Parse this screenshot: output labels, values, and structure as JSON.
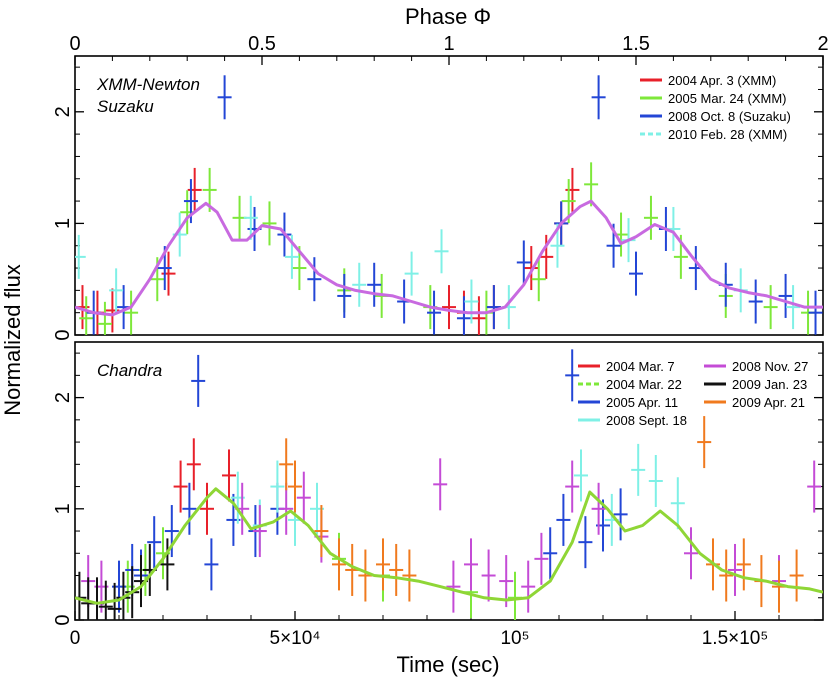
{
  "figure": {
    "top_axis_label": "Phase Φ",
    "x_axis_label": "Time (sec)",
    "y_axis_label": "Normalized flux"
  },
  "chart_data": [
    {
      "type": "line",
      "panel": "top",
      "title": "XMM-Newton Suzaku",
      "title_lines": [
        "XMM-Newton",
        "Suzaku"
      ],
      "phase_ticks": [
        "0",
        "0.5",
        "1",
        "1.5",
        "2"
      ],
      "phase_range": [
        0,
        2
      ],
      "ylim": [
        0,
        2.5
      ],
      "y_ticks": [
        "0",
        "1",
        "2"
      ],
      "legend": [
        {
          "label": "2004 Apr. 3 (XMM)",
          "color": "#e8202a",
          "style": "solid"
        },
        {
          "label": "2005 Mar. 24 (XMM)",
          "color": "#7ee83a",
          "style": "solid"
        },
        {
          "label": "2008 Oct. 8 (Suzaku)",
          "color": "#2346d6",
          "style": "solid"
        },
        {
          "label": "2010 Feb. 28 (XMM)",
          "color": "#7ff0e6",
          "style": "dashed"
        }
      ],
      "model_color": "#c86ae0",
      "model_curve": {
        "x": [
          0,
          0.05,
          0.1,
          0.15,
          0.2,
          0.25,
          0.3,
          0.35,
          0.38,
          0.42,
          0.46,
          0.5,
          0.55,
          0.6,
          0.65,
          0.7,
          0.75,
          0.8,
          0.85,
          0.9,
          0.95,
          1.0,
          1.05,
          1.1,
          1.15,
          1.2,
          1.25,
          1.3,
          1.35,
          1.38,
          1.42,
          1.46,
          1.5,
          1.55,
          1.6,
          1.65,
          1.7,
          1.75,
          1.8,
          1.85,
          1.9,
          1.95,
          2.0
        ],
        "y": [
          0.25,
          0.2,
          0.18,
          0.25,
          0.5,
          0.8,
          1.05,
          1.18,
          1.1,
          0.85,
          0.85,
          0.98,
          0.95,
          0.75,
          0.55,
          0.45,
          0.4,
          0.37,
          0.35,
          0.3,
          0.25,
          0.22,
          0.2,
          0.2,
          0.25,
          0.45,
          0.75,
          1.0,
          1.15,
          1.2,
          1.05,
          0.82,
          0.88,
          0.99,
          0.92,
          0.7,
          0.5,
          0.42,
          0.38,
          0.35,
          0.3,
          0.25,
          0.25
        ]
      },
      "series": [
        {
          "name": "2004 Apr. 3 (XMM)",
          "color": "#e8202a",
          "x": [
            0.02,
            0.06,
            0.1,
            0.25,
            0.32,
            1.0,
            1.04,
            1.08,
            1.12,
            1.22,
            1.26,
            1.3,
            1.33
          ],
          "y": [
            0.25,
            0.2,
            0.22,
            0.55,
            1.3,
            0.25,
            0.2,
            0.15,
            0.25,
            0.6,
            0.7,
            1.0,
            1.3
          ]
        },
        {
          "name": "2005 Mar. 24 (XMM)",
          "color": "#7ee83a",
          "x": [
            0.03,
            0.08,
            0.15,
            0.22,
            0.3,
            0.36,
            0.44,
            0.52,
            0.6,
            0.72,
            0.82,
            0.95,
            1.1,
            1.24,
            1.32,
            1.38,
            1.46,
            1.54,
            1.62,
            1.74,
            1.86,
            1.96
          ],
          "y": [
            0.15,
            0.1,
            0.2,
            0.5,
            1.1,
            1.3,
            1.05,
            1.0,
            0.6,
            0.4,
            0.35,
            0.25,
            0.2,
            0.5,
            1.2,
            1.35,
            0.9,
            1.05,
            0.7,
            0.35,
            0.25,
            0.2
          ]
        },
        {
          "name": "2008 Oct. 8 (Suzaku)",
          "color": "#2346d6",
          "x": [
            0.05,
            0.13,
            0.24,
            0.31,
            0.4,
            0.48,
            0.56,
            0.64,
            0.72,
            0.8,
            0.88,
            0.96,
            1.04,
            1.12,
            1.2,
            1.3,
            1.4,
            1.44,
            1.5,
            1.58,
            1.66,
            1.74,
            1.82,
            1.9,
            1.98
          ],
          "y": [
            0.2,
            0.25,
            0.6,
            1.2,
            2.13,
            0.95,
            0.9,
            0.5,
            0.35,
            0.45,
            0.3,
            0.2,
            0.15,
            0.25,
            0.65,
            1.0,
            2.13,
            0.8,
            0.55,
            0.95,
            0.6,
            0.45,
            0.3,
            0.35,
            0.2
          ]
        },
        {
          "name": "2010 Feb. 28 (XMM)",
          "color": "#7ff0e6",
          "x": [
            0.01,
            0.11,
            0.28,
            0.47,
            0.58,
            0.76,
            0.9,
            0.98,
            1.06,
            1.16,
            1.29,
            1.48,
            1.6,
            1.78,
            1.92
          ],
          "y": [
            0.7,
            0.4,
            0.9,
            1.05,
            0.7,
            0.45,
            0.55,
            0.75,
            0.3,
            0.25,
            0.8,
            0.85,
            0.95,
            0.4,
            0.25
          ]
        }
      ]
    },
    {
      "type": "line",
      "panel": "bottom",
      "title": "Chandra",
      "x_ticks": [
        "0",
        "5×10⁴",
        "10⁵",
        "1.5×10⁵"
      ],
      "x_tick_values": [
        0,
        50000,
        100000,
        150000
      ],
      "xlim": [
        0,
        170000
      ],
      "ylim": [
        0,
        2.5
      ],
      "y_ticks": [
        "0",
        "1",
        "2"
      ],
      "legend": [
        {
          "label": "2004 Mar. 7",
          "color": "#e8202a",
          "style": "solid"
        },
        {
          "label": "2004 Mar. 22",
          "color": "#7ee83a",
          "style": "dashed"
        },
        {
          "label": "2005 Apr. 11",
          "color": "#2346d6",
          "style": "solid"
        },
        {
          "label": "2008 Sept. 18",
          "color": "#7ff0e6",
          "style": "solid"
        },
        {
          "label": "2008 Nov. 27",
          "color": "#c44bd6",
          "style": "solid"
        },
        {
          "label": "2009 Jan. 23",
          "color": "#111111",
          "style": "solid"
        },
        {
          "label": "2009 Apr. 21",
          "color": "#f07a1e",
          "style": "solid"
        }
      ],
      "model_color": "#8fd636",
      "model_curve": {
        "x": [
          0,
          5000,
          10000,
          15000,
          20000,
          25000,
          30000,
          32000,
          36000,
          40000,
          45000,
          49000,
          53000,
          58000,
          63000,
          68000,
          73000,
          78000,
          83000,
          88000,
          93000,
          98000,
          103000,
          108000,
          113000,
          117000,
          121000,
          125000,
          129000,
          133000,
          137000,
          142000,
          147000,
          152000,
          157000,
          162000,
          167000,
          170000
        ],
        "y": [
          0.2,
          0.15,
          0.18,
          0.3,
          0.55,
          0.85,
          1.1,
          1.18,
          1.05,
          0.82,
          0.88,
          0.98,
          0.85,
          0.6,
          0.48,
          0.4,
          0.38,
          0.35,
          0.3,
          0.25,
          0.2,
          0.18,
          0.2,
          0.35,
          0.7,
          1.15,
          1.0,
          0.8,
          0.85,
          0.98,
          0.85,
          0.6,
          0.45,
          0.38,
          0.35,
          0.3,
          0.28,
          0.25
        ]
      },
      "series": [
        {
          "name": "2004 Mar. 7",
          "color": "#e8202a",
          "x": [
            24000,
            27000,
            30000,
            35000
          ],
          "y": [
            1.2,
            1.4,
            1.0,
            1.3
          ]
        },
        {
          "name": "2004 Mar. 22",
          "color": "#7ee83a",
          "x": [
            12000,
            16000,
            20000,
            60000,
            70000,
            90000,
            100000
          ],
          "y": [
            0.3,
            0.45,
            0.6,
            0.55,
            0.4,
            0.25,
            0.2
          ]
        },
        {
          "name": "2005 Apr. 11",
          "color": "#2346d6",
          "x": [
            10000,
            13000,
            15000,
            18000,
            22000,
            26000,
            28000,
            31000,
            36000,
            41000,
            46000,
            108000,
            111000,
            113000,
            116000,
            120000,
            124000
          ],
          "y": [
            0.3,
            0.45,
            0.4,
            0.7,
            0.8,
            1.0,
            2.15,
            0.5,
            0.9,
            0.8,
            1.0,
            0.6,
            0.9,
            2.2,
            0.7,
            0.85,
            0.95
          ]
        },
        {
          "name": "2008 Sept. 18",
          "color": "#7ff0e6",
          "x": [
            37000,
            42000,
            46000,
            50000,
            55000,
            115000,
            122000,
            128000,
            132000,
            137000
          ],
          "y": [
            1.1,
            0.85,
            1.2,
            0.9,
            1.0,
            1.3,
            0.9,
            1.35,
            1.25,
            1.05
          ]
        },
        {
          "name": "2008 Nov. 27",
          "color": "#c44bd6",
          "x": [
            3000,
            6000,
            38000,
            42000,
            48000,
            52000,
            56000,
            83000,
            86000,
            90000,
            94000,
            98000,
            103000,
            106000,
            113000,
            119000,
            140000,
            150000,
            160000,
            168000
          ],
          "y": [
            0.35,
            0.3,
            1.0,
            0.8,
            1.0,
            1.1,
            0.75,
            1.22,
            0.3,
            0.5,
            0.4,
            0.35,
            0.3,
            0.55,
            1.2,
            1.0,
            0.6,
            0.45,
            0.35,
            1.2
          ]
        },
        {
          "name": "2009 Jan. 23",
          "color": "#111111",
          "x": [
            1000,
            3000,
            5000,
            7000,
            9000,
            11000,
            13000,
            15000,
            17000,
            21000
          ],
          "y": [
            0.2,
            0.15,
            0.15,
            0.12,
            0.1,
            0.2,
            0.25,
            0.35,
            0.45,
            0.5
          ]
        },
        {
          "name": "2009 Apr. 21",
          "color": "#f07a1e",
          "x": [
            48000,
            50000,
            56000,
            60000,
            63000,
            66000,
            70000,
            73000,
            76000,
            143000,
            145000,
            148000,
            152000,
            156000,
            160000,
            164000
          ],
          "y": [
            1.4,
            1.2,
            0.8,
            0.5,
            0.45,
            0.4,
            0.5,
            0.45,
            0.4,
            1.6,
            0.5,
            0.4,
            0.5,
            0.35,
            0.3,
            0.4
          ]
        }
      ]
    }
  ]
}
